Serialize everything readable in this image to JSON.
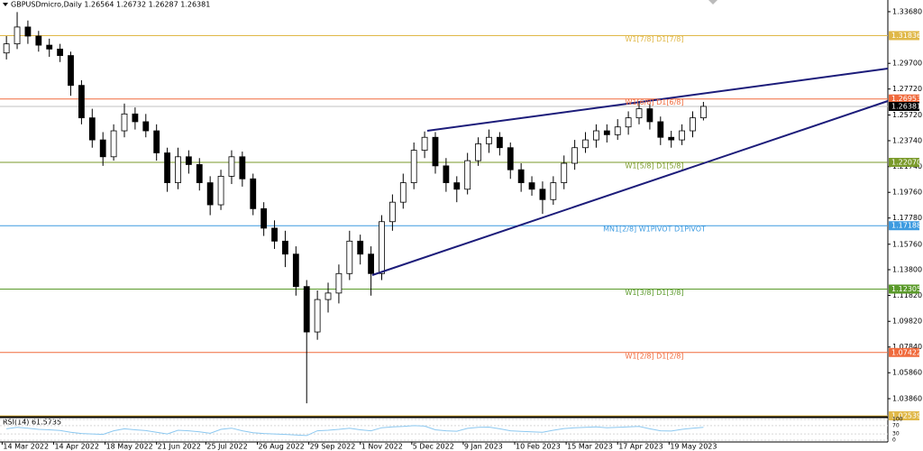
{
  "chart_data": [
    {
      "type": "candlestick",
      "title": "GBPUSDmicro,Daily  1.26564 1.26732 1.26287 1.26381",
      "x": [
        2,
        7,
        12,
        17,
        22,
        27,
        32,
        37,
        42,
        47,
        52,
        57,
        62,
        67,
        72,
        77,
        82,
        87,
        92,
        97,
        102,
        107,
        112,
        117,
        122,
        127,
        132,
        137,
        142,
        147,
        152,
        157,
        162,
        167,
        172,
        177,
        182,
        187,
        192,
        197,
        202,
        207,
        212,
        217,
        222,
        227,
        232,
        237,
        242,
        247,
        252,
        257,
        262,
        267,
        272,
        277,
        282,
        287,
        292,
        297,
        302,
        307,
        312,
        317,
        322,
        327
      ],
      "open": [
        1.305,
        1.312,
        1.325,
        1.318,
        1.311,
        1.308,
        1.303,
        1.28,
        1.255,
        1.238,
        1.225,
        1.245,
        1.258,
        1.252,
        1.245,
        1.228,
        1.205,
        1.225,
        1.219,
        1.205,
        1.188,
        1.21,
        1.225,
        1.208,
        1.185,
        1.17,
        1.16,
        1.15,
        1.125,
        1.09,
        1.115,
        1.12,
        1.135,
        1.16,
        1.15,
        1.135,
        1.175,
        1.19,
        1.205,
        1.23,
        1.24,
        1.218,
        1.205,
        1.2,
        1.222,
        1.235,
        1.24,
        1.232,
        1.215,
        1.205,
        1.2,
        1.192,
        1.205,
        1.22,
        1.232,
        1.238,
        1.245,
        1.242,
        1.248,
        1.255,
        1.262,
        1.252,
        1.24,
        1.238,
        1.245,
        1.255
      ],
      "high": [
        1.318,
        1.3365,
        1.33,
        1.322,
        1.316,
        1.312,
        1.306,
        1.284,
        1.262,
        1.244,
        1.25,
        1.266,
        1.263,
        1.258,
        1.25,
        1.232,
        1.232,
        1.23,
        1.224,
        1.21,
        1.215,
        1.23,
        1.229,
        1.212,
        1.19,
        1.176,
        1.168,
        1.156,
        1.13,
        1.122,
        1.128,
        1.142,
        1.168,
        1.165,
        1.156,
        1.18,
        1.196,
        1.212,
        1.236,
        1.2445,
        1.244,
        1.224,
        1.21,
        1.228,
        1.24,
        1.246,
        1.244,
        1.236,
        1.22,
        1.21,
        1.206,
        1.21,
        1.226,
        1.238,
        1.244,
        1.25,
        1.25,
        1.254,
        1.26,
        1.268,
        1.266,
        1.256,
        1.245,
        1.25,
        1.26,
        1.2673
      ],
      "low": [
        1.3,
        1.308,
        1.312,
        1.306,
        1.302,
        1.298,
        1.272,
        1.25,
        1.232,
        1.218,
        1.222,
        1.24,
        1.246,
        1.24,
        1.222,
        1.198,
        1.2,
        1.212,
        1.199,
        1.18,
        1.184,
        1.204,
        1.202,
        1.18,
        1.164,
        1.154,
        1.14,
        1.118,
        1.035,
        1.084,
        1.105,
        1.112,
        1.13,
        1.142,
        1.118,
        1.13,
        1.168,
        1.185,
        1.2,
        1.224,
        1.212,
        1.198,
        1.19,
        1.196,
        1.218,
        1.228,
        1.226,
        1.208,
        1.198,
        1.195,
        1.181,
        1.188,
        1.2,
        1.215,
        1.228,
        1.232,
        1.236,
        1.238,
        1.242,
        1.25,
        1.246,
        1.234,
        1.232,
        1.234,
        1.24,
        1.253
      ],
      "close": [
        1.312,
        1.325,
        1.318,
        1.311,
        1.308,
        1.303,
        1.28,
        1.255,
        1.238,
        1.225,
        1.245,
        1.258,
        1.252,
        1.245,
        1.228,
        1.205,
        1.225,
        1.219,
        1.205,
        1.188,
        1.21,
        1.225,
        1.208,
        1.185,
        1.17,
        1.16,
        1.15,
        1.125,
        1.09,
        1.115,
        1.12,
        1.135,
        1.16,
        1.15,
        1.135,
        1.175,
        1.19,
        1.205,
        1.23,
        1.24,
        1.218,
        1.205,
        1.2,
        1.222,
        1.235,
        1.24,
        1.232,
        1.215,
        1.205,
        1.2,
        1.192,
        1.205,
        1.22,
        1.232,
        1.238,
        1.245,
        1.242,
        1.248,
        1.255,
        1.262,
        1.252,
        1.24,
        1.238,
        1.245,
        1.255,
        1.2638
      ],
      "up_color": "#ffffff",
      "down_color": "#000000",
      "xlim": [
        -1,
        413
      ],
      "xticks": [
        {
          "value": 0,
          "label": "14 Mar 2022"
        },
        {
          "value": 24,
          "label": "14 Apr 2022"
        },
        {
          "value": 48,
          "label": "18 May 2022"
        },
        {
          "value": 72,
          "label": "21 Jun 2022"
        },
        {
          "value": 95,
          "label": "25 Jul 2022"
        },
        {
          "value": 119,
          "label": "26 Aug 2022"
        },
        {
          "value": 143,
          "label": "29 Sep 2022"
        },
        {
          "value": 167,
          "label": "1 Nov 2022"
        },
        {
          "value": 191,
          "label": "5 Dec 2022"
        },
        {
          "value": 215,
          "label": "9 Jan 2023"
        },
        {
          "value": 239,
          "label": "10 Feb 2023"
        },
        {
          "value": 263,
          "label": "15 Mar 2023"
        },
        {
          "value": 287,
          "label": "17 Apr 2023"
        },
        {
          "value": 311,
          "label": "19 May 2023"
        }
      ],
      "ylim": [
        1.0247,
        1.3458
      ],
      "yticks": [
        {
          "value": 1.3368,
          "label": "1.33680"
        },
        {
          "value": 1.297,
          "label": "1.29700"
        },
        {
          "value": 1.2772,
          "label": "1.27720"
        },
        {
          "value": 1.2572,
          "label": "1.25720"
        },
        {
          "value": 1.2374,
          "label": "1.23740"
        },
        {
          "value": 1.2174,
          "label": "1.21740"
        },
        {
          "value": 1.1976,
          "label": "1.19760"
        },
        {
          "value": 1.1778,
          "label": "1.17780"
        },
        {
          "value": 1.1576,
          "label": "1.15760"
        },
        {
          "value": 1.138,
          "label": "1.13800"
        },
        {
          "value": 1.1182,
          "label": "1.11820"
        },
        {
          "value": 1.0982,
          "label": "1.09820"
        },
        {
          "value": 1.0784,
          "label": "1.07840"
        },
        {
          "value": 1.0586,
          "label": "1.05860"
        },
        {
          "value": 1.0386,
          "label": "1.03860"
        }
      ],
      "levels": [
        {
          "name": "W1[7/8] D1[7/8]",
          "price": 1.31836,
          "color": "#e0b848"
        },
        {
          "name": "W1[6/8] D1[6/8]",
          "price": 1.26953,
          "color": "#f06a3c"
        },
        {
          "name": "W1[5/8] D1[5/8]",
          "price": {
            "value": 1.2207,
            "label": "1.22070"
          },
          "color": "#7a9a2a"
        },
        {
          "name": "MN1[2/8] W1PIVOT D1PIVOT",
          "price": 1.17188,
          "color": "#3d9be0"
        },
        {
          "name": "W1[3/8] D1[3/8]",
          "price": 1.12305,
          "color": "#5a9a2a"
        },
        {
          "name": "W1[2/8] D1[2/8]",
          "price": 1.07422,
          "color": "#f06a3c"
        },
        {
          "price": 1.02539,
          "color": "#e0b848"
        }
      ],
      "last_price": 1.26381,
      "last_color": "#000000"
    },
    {
      "type": "line",
      "title": "RSI(14) 61.5735",
      "x": [
        2,
        7,
        12,
        17,
        22,
        27,
        32,
        37,
        42,
        47,
        52,
        57,
        62,
        67,
        72,
        77,
        82,
        87,
        92,
        97,
        102,
        107,
        112,
        117,
        122,
        127,
        132,
        137,
        142,
        147,
        152,
        157,
        162,
        167,
        172,
        177,
        182,
        187,
        192,
        197,
        202,
        207,
        212,
        217,
        222,
        227,
        232,
        237,
        242,
        247,
        252,
        257,
        262,
        267,
        272,
        277,
        282,
        287,
        292,
        297,
        302,
        307,
        312,
        317,
        322,
        327
      ],
      "values": [
        55,
        62,
        58,
        52,
        50,
        47,
        38,
        32,
        30,
        28,
        45,
        55,
        50,
        46,
        38,
        30,
        48,
        45,
        40,
        33,
        52,
        58,
        45,
        36,
        32,
        30,
        28,
        25,
        22,
        45,
        48,
        52,
        58,
        50,
        45,
        60,
        64,
        66,
        70,
        68,
        50,
        45,
        43,
        57,
        62,
        63,
        55,
        45,
        42,
        40,
        38,
        48,
        56,
        60,
        62,
        64,
        60,
        62,
        64,
        66,
        55,
        45,
        44,
        52,
        58,
        61.5735
      ],
      "xlim": [
        -1,
        413
      ],
      "ylim": [
        0,
        100
      ],
      "yticks": [
        0,
        30,
        70,
        100
      ],
      "color": "#8cc8f0"
    }
  ]
}
